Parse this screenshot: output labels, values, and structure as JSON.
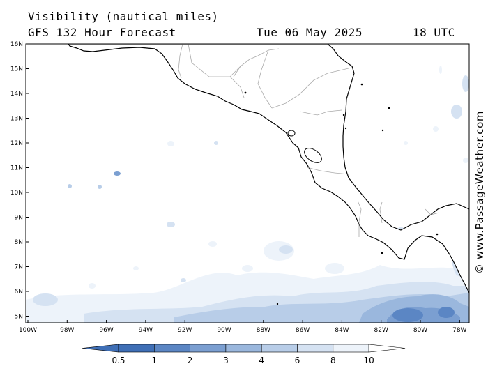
{
  "header": {
    "title": "Visibility (nautical miles)",
    "subtitle": "GFS 132 Hour Forecast",
    "date": "Tue 06 May 2025",
    "time": "18 UTC"
  },
  "map": {
    "lat_labels": [
      "16N",
      "15N",
      "14N",
      "13N",
      "12N",
      "11N",
      "10N",
      "9N",
      "8N",
      "7N",
      "6N",
      "5N"
    ],
    "lon_labels": [
      "100W",
      "98W",
      "96W",
      "94W",
      "92W",
      "90W",
      "88W",
      "86W",
      "84W",
      "82W",
      "80W",
      "78W"
    ],
    "lat_range": [
      4.75,
      16.0
    ],
    "lon_range": [
      -100.0,
      -77.9
    ],
    "colors": {
      "land": "#ffffff",
      "sea": "#ffffff",
      "coast": "#000000",
      "border": "#aaaaaa"
    }
  },
  "legend": {
    "labels": [
      "0.5",
      "1",
      "2",
      "3",
      "4",
      "6",
      "8",
      "10"
    ],
    "colors": [
      "#3f6fb6",
      "#5b86c4",
      "#7b9fd1",
      "#9ab7dd",
      "#b8cde8",
      "#d5e2f2",
      "#edf3fa",
      "#ffffff"
    ]
  },
  "watermark": "© www.PassageWeather.com"
}
